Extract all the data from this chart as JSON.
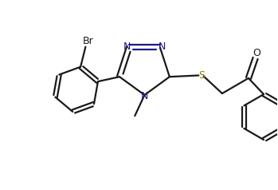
{
  "bg_color": "#ffffff",
  "line_color": "#1a1a1a",
  "N_color": "#1a1a8a",
  "S_color": "#8a7a00",
  "O_color": "#1a1a1a",
  "Br_color": "#1a1a1a",
  "line_width": 1.6,
  "figsize": [
    3.49,
    2.38
  ],
  "dpi": 100,
  "xlim": [
    0,
    10
  ],
  "ylim": [
    0,
    6.8
  ]
}
